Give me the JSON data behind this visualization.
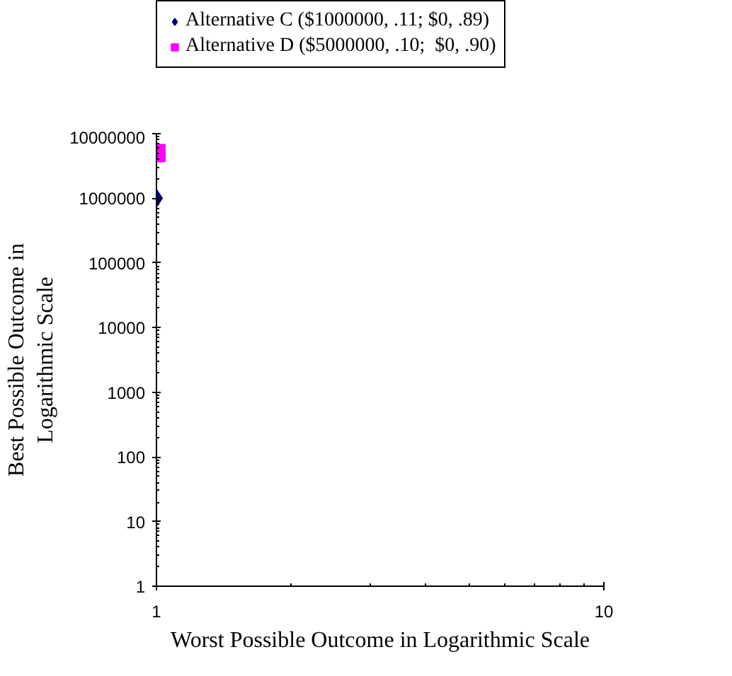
{
  "chart_data": {
    "type": "scatter",
    "xlabel": "Worst Possible Outcome in Logarithmic Scale",
    "ylabel": "Best Possible Outcome in Logarithmic Scale",
    "log": "xy",
    "xlim": [
      1,
      10
    ],
    "ylim": [
      1,
      10000000
    ],
    "xticks": [
      1,
      10
    ],
    "yticks": [
      1,
      10,
      100,
      1000,
      10000,
      100000,
      1000000,
      10000000
    ],
    "grid": false,
    "legend": "top",
    "series": [
      {
        "name": "Alternative C ($1000000, .11; $0, .89)",
        "color": "#000080",
        "marker": "diamond",
        "x": [
          1
        ],
        "values": [
          1000000
        ]
      },
      {
        "name": "Alternative D ($5000000, .10;  $0, .90)",
        "color": "#ff00ff",
        "marker": "square",
        "x": [
          1
        ],
        "values": [
          5000000
        ]
      }
    ]
  }
}
